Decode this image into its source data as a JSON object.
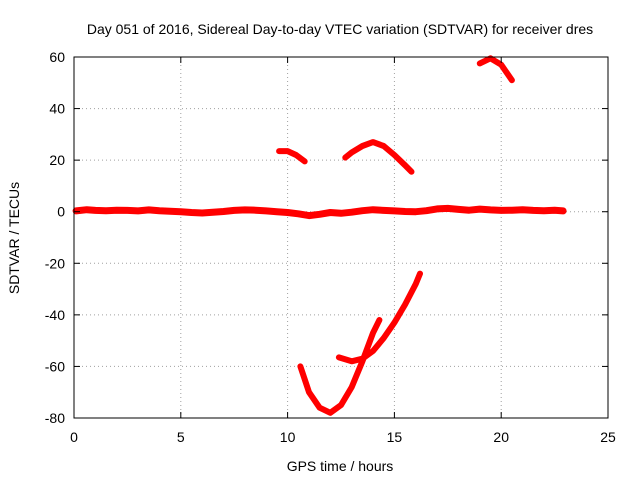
{
  "chart_data": {
    "type": "scatter",
    "title": "Day 051 of 2016, Sidereal Day-to-day VTEC variation (SDTVAR) for receiver dres",
    "xlabel": "GPS time / hours",
    "ylabel": "SDTVAR / TECUs",
    "xlim": [
      0,
      25
    ],
    "ylim": [
      -80,
      60
    ],
    "xticks": [
      0,
      5,
      10,
      15,
      20,
      25
    ],
    "yticks": [
      -80,
      -60,
      -40,
      -20,
      0,
      20,
      40,
      60
    ],
    "grid": true,
    "legend": "none",
    "color": "#ff0000",
    "series": [
      {
        "x": [
          0.1,
          0.6,
          1.0,
          1.5,
          2.0,
          2.5,
          3.0,
          3.5,
          4.0,
          4.5,
          5.0,
          5.5,
          6.0,
          6.5,
          7.0,
          7.5,
          8.0,
          8.5,
          9.0,
          9.5,
          10.0,
          10.5,
          11.0,
          11.5,
          12.0,
          12.5,
          13.0,
          13.5,
          14.0,
          14.5,
          15.0,
          15.5,
          16.0,
          16.5,
          17.0,
          17.5,
          18.0,
          18.5,
          19.0,
          19.5,
          20.0,
          20.5,
          21.0,
          21.5,
          22.0,
          22.5,
          22.9
        ],
        "y": [
          0.3,
          0.8,
          0.5,
          0.4,
          0.6,
          0.5,
          0.3,
          0.7,
          0.4,
          0.2,
          0.0,
          -0.3,
          -0.5,
          -0.2,
          0.1,
          0.5,
          0.7,
          0.6,
          0.3,
          0.0,
          -0.3,
          -0.8,
          -1.5,
          -1.0,
          -0.3,
          -0.6,
          -0.2,
          0.4,
          0.8,
          0.5,
          0.3,
          0.1,
          0.0,
          0.4,
          1.1,
          1.3,
          0.9,
          0.6,
          1.0,
          0.7,
          0.5,
          0.6,
          0.8,
          0.5,
          0.4,
          0.6,
          0.3
        ]
      },
      {
        "x": [
          9.6,
          10.0,
          10.4,
          10.8
        ],
        "y": [
          23.5,
          23.5,
          22.0,
          19.5
        ]
      },
      {
        "x": [
          12.7,
          13.0,
          13.5,
          14.0,
          14.5,
          15.0,
          15.5,
          15.8
        ],
        "y": [
          21.0,
          23.0,
          25.5,
          27.0,
          25.5,
          22.0,
          18.0,
          15.5
        ]
      },
      {
        "x": [
          19.0,
          19.5,
          20.0,
          20.5
        ],
        "y": [
          57.5,
          59.5,
          57.0,
          51.0
        ]
      },
      {
        "x": [
          10.6,
          11.0,
          11.5,
          12.0,
          12.5,
          13.0,
          13.5,
          14.0,
          14.3
        ],
        "y": [
          -60.0,
          -70.0,
          -76.0,
          -78.0,
          -75.0,
          -68.0,
          -58.0,
          -47.0,
          -42.0
        ]
      },
      {
        "x": [
          12.4,
          13.0,
          13.5,
          14.0,
          14.5,
          15.0,
          15.5,
          16.0,
          16.2
        ],
        "y": [
          -56.5,
          -58.0,
          -57.0,
          -54.0,
          -49.0,
          -43.0,
          -36.0,
          -28.0,
          -24.0
        ]
      }
    ]
  }
}
